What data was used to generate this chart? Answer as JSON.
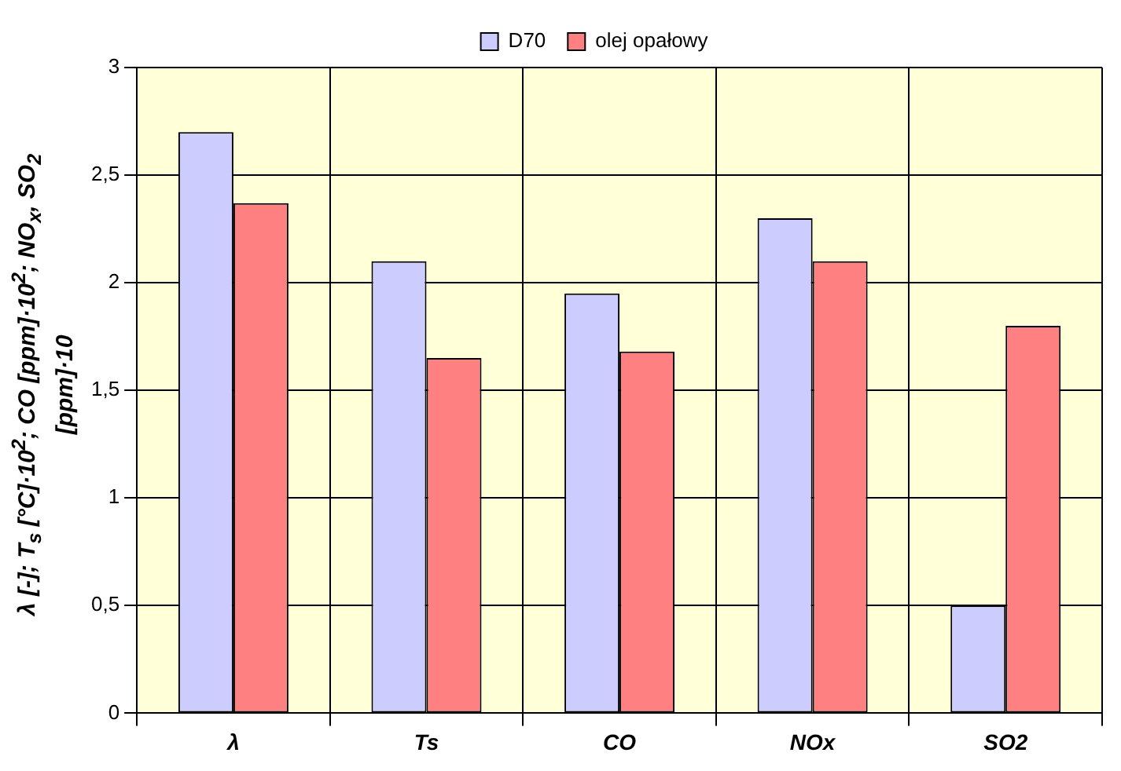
{
  "chart_data": {
    "type": "bar",
    "ylabel": "λ [-]; T$_{s}$ [°C]·10$^{2}$; CO [ppm]·10$^{2}$; NO$_{x}$, SO$_{2}$ [ppm]·10",
    "categories": [
      "λ",
      "Ts",
      "CO",
      "NOx",
      "SO2"
    ],
    "series": [
      {
        "name": "D70",
        "color": "#ccccff",
        "values": [
          2.7,
          2.1,
          1.95,
          2.3,
          0.5
        ]
      },
      {
        "name": "olej opałowy",
        "color": "#ff8080",
        "values": [
          2.37,
          1.65,
          1.68,
          2.1,
          1.8
        ]
      }
    ],
    "ylim": [
      0,
      3
    ],
    "yticks": [
      0,
      {
        "value": 0.5,
        "label": "0,5"
      },
      1,
      {
        "value": 1.5,
        "label": "1,5"
      },
      2,
      {
        "value": 2.5,
        "label": "2,5"
      },
      3
    ],
    "grid": true,
    "legend": "top"
  }
}
